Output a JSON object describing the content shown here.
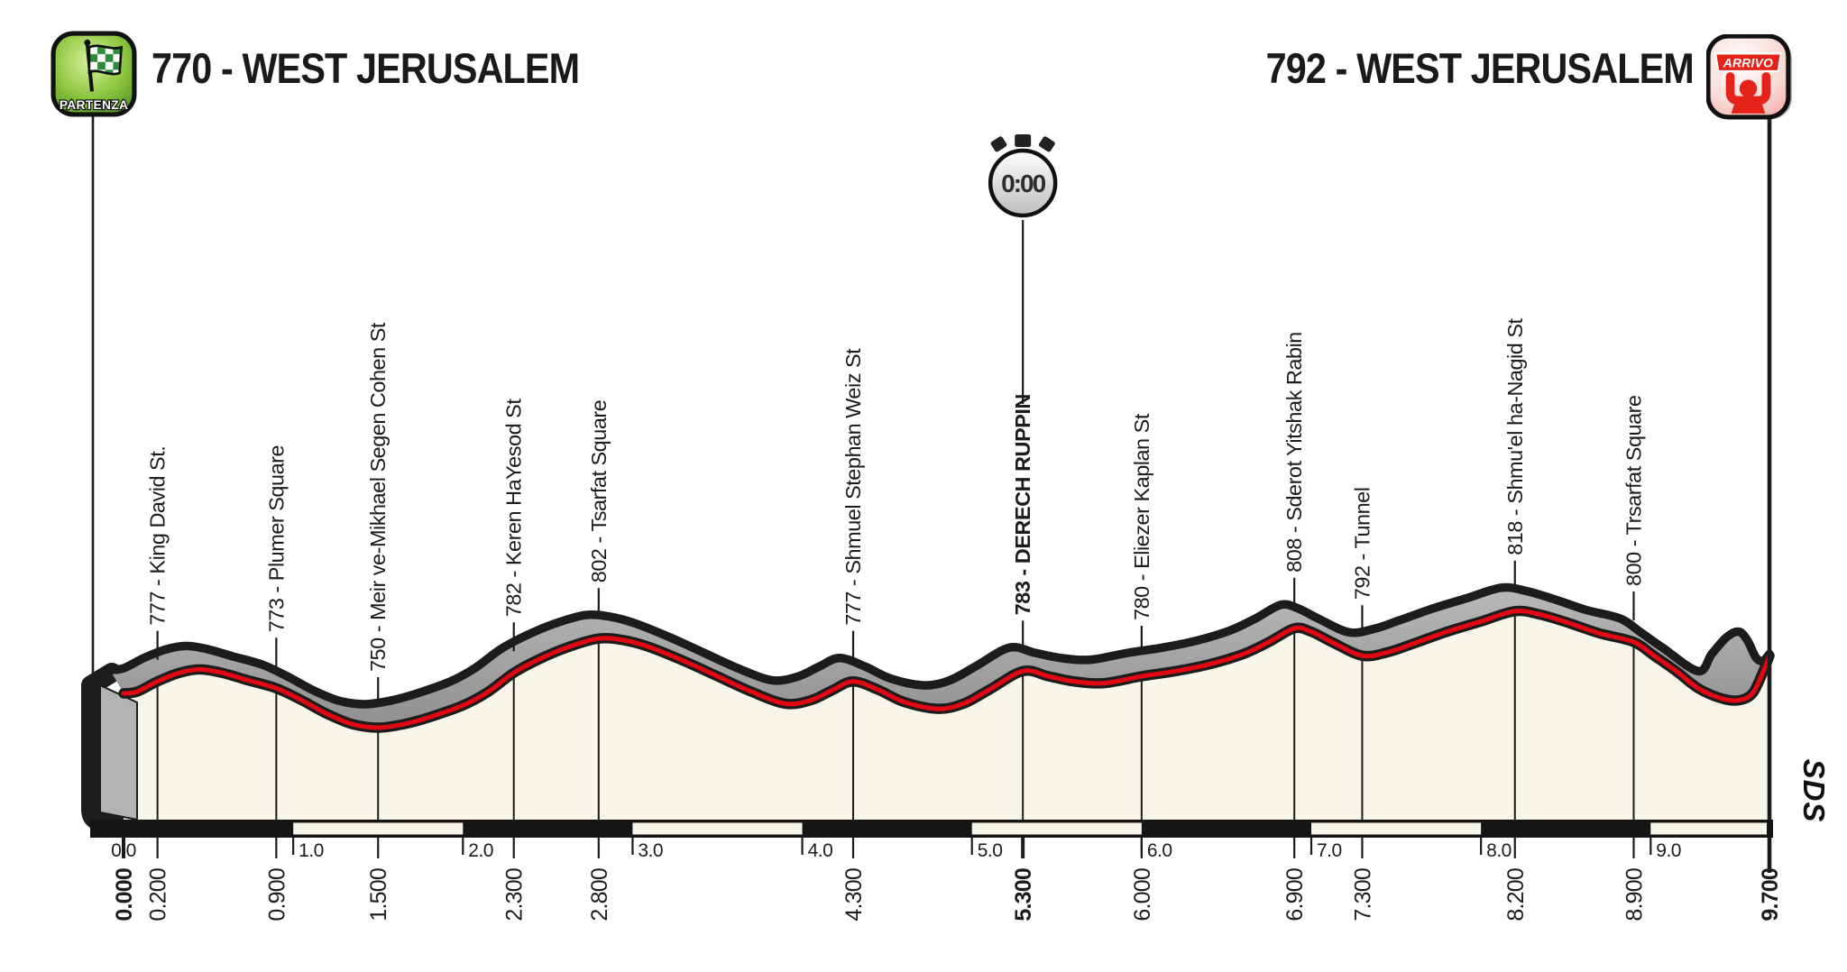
{
  "header": {
    "start_label": "770 - WEST JERUSALEM",
    "finish_label": "792 - WEST JERUSALEM",
    "partenza_badge": "PARTENZA",
    "arrivo_badge": "ARRIVO"
  },
  "stopwatch": {
    "time": "0:00"
  },
  "branding": {
    "logo": "SDS"
  },
  "colors": {
    "red_line": "#e30613",
    "cream_fill": "#f8f6e8",
    "gray_band": "#9d9d9d",
    "outline_black": "#1c1c1c",
    "start_green": "#76b82a",
    "finish_red": "#e5231b"
  },
  "chart_data": {
    "type": "area",
    "title": "Stage elevation profile - West Jerusalem individual time trial",
    "x_unit": "km",
    "y_unit": "m",
    "x_range": [
      0,
      9.7
    ],
    "elevation_range_m": [
      750,
      818
    ],
    "km_ticks": [
      "0.0",
      "1.0",
      "2.0",
      "3.0",
      "4.0",
      "5.0",
      "6.0",
      "7.0",
      "8.0",
      "9.0"
    ],
    "waypoints": [
      {
        "km": 0.0,
        "km_label": "0.000",
        "elevation": 770,
        "name": "",
        "bold": true,
        "axis_only": true
      },
      {
        "km": 0.2,
        "km_label": "0.200",
        "elevation": 777,
        "name": "King David St.",
        "bold": false,
        "axis_only": false
      },
      {
        "km": 0.9,
        "km_label": "0.900",
        "elevation": 773,
        "name": "Plumer Square",
        "bold": false,
        "axis_only": false
      },
      {
        "km": 1.5,
        "km_label": "1.500",
        "elevation": 750,
        "name": "Meir ve-Mikhael Segen Cohen St",
        "bold": false,
        "axis_only": false
      },
      {
        "km": 2.3,
        "km_label": "2.300",
        "elevation": 782,
        "name": "Keren HaYesod St",
        "bold": false,
        "axis_only": false
      },
      {
        "km": 2.8,
        "km_label": "2.800",
        "elevation": 802,
        "name": "Tsarfat Square",
        "bold": false,
        "axis_only": false
      },
      {
        "km": 4.3,
        "km_label": "4.300",
        "elevation": 777,
        "name": "Shmuel Stephan Weiz St",
        "bold": false,
        "axis_only": false
      },
      {
        "km": 5.3,
        "km_label": "5.300",
        "elevation": 783,
        "name": "DERECH RUPPIN",
        "bold": true,
        "axis_only": false
      },
      {
        "km": 6.0,
        "km_label": "6.000",
        "elevation": 780,
        "name": "Eliezer Kaplan St",
        "bold": false,
        "axis_only": false
      },
      {
        "km": 6.9,
        "km_label": "6.900",
        "elevation": 808,
        "name": "Sderot Yitshak Rabin",
        "bold": false,
        "axis_only": false
      },
      {
        "km": 7.3,
        "km_label": "7.300",
        "elevation": 792,
        "name": "Tunnel",
        "bold": false,
        "axis_only": false
      },
      {
        "km": 8.2,
        "km_label": "8.200",
        "elevation": 818,
        "name": "Shmu'el ha-Nagid St",
        "bold": false,
        "axis_only": false
      },
      {
        "km": 8.9,
        "km_label": "8.900",
        "elevation": 800,
        "name": "Trsarfat Square",
        "bold": false,
        "axis_only": false
      },
      {
        "km": 9.7,
        "km_label": "9.700",
        "elevation": 792,
        "name": "",
        "bold": true,
        "axis_only": true
      }
    ],
    "profile_m": [
      [
        0.0,
        770
      ],
      [
        0.08,
        771
      ],
      [
        0.2,
        777
      ],
      [
        0.33,
        782
      ],
      [
        0.45,
        784
      ],
      [
        0.58,
        782
      ],
      [
        0.72,
        778
      ],
      [
        0.9,
        773
      ],
      [
        1.05,
        766
      ],
      [
        1.2,
        758
      ],
      [
        1.35,
        752
      ],
      [
        1.5,
        750
      ],
      [
        1.65,
        752
      ],
      [
        1.8,
        756
      ],
      [
        2.0,
        763
      ],
      [
        2.15,
        771
      ],
      [
        2.3,
        782
      ],
      [
        2.45,
        790
      ],
      [
        2.62,
        797
      ],
      [
        2.8,
        802
      ],
      [
        2.95,
        801
      ],
      [
        3.1,
        797
      ],
      [
        3.3,
        789
      ],
      [
        3.5,
        780
      ],
      [
        3.7,
        771
      ],
      [
        3.9,
        764
      ],
      [
        4.05,
        766
      ],
      [
        4.18,
        772
      ],
      [
        4.3,
        777
      ],
      [
        4.45,
        772
      ],
      [
        4.6,
        765
      ],
      [
        4.8,
        761
      ],
      [
        4.95,
        764
      ],
      [
        5.1,
        772
      ],
      [
        5.3,
        783
      ],
      [
        5.45,
        780
      ],
      [
        5.6,
        777
      ],
      [
        5.78,
        776
      ],
      [
        6.0,
        780
      ],
      [
        6.2,
        783
      ],
      [
        6.4,
        787
      ],
      [
        6.6,
        793
      ],
      [
        6.75,
        800
      ],
      [
        6.9,
        808
      ],
      [
        7.0,
        806
      ],
      [
        7.12,
        800
      ],
      [
        7.3,
        792
      ],
      [
        7.45,
        794
      ],
      [
        7.6,
        799
      ],
      [
        7.8,
        806
      ],
      [
        8.0,
        812
      ],
      [
        8.2,
        818
      ],
      [
        8.35,
        816
      ],
      [
        8.52,
        811
      ],
      [
        8.7,
        805
      ],
      [
        8.9,
        800
      ],
      [
        9.02,
        792
      ],
      [
        9.15,
        783
      ],
      [
        9.28,
        773
      ],
      [
        9.42,
        767
      ],
      [
        9.52,
        766
      ],
      [
        9.6,
        770
      ],
      [
        9.66,
        782
      ],
      [
        9.7,
        792
      ]
    ],
    "ribbon_top_tail_m": [
      [
        9.28,
        783
      ],
      [
        9.36,
        793
      ],
      [
        9.45,
        803
      ],
      [
        9.52,
        806
      ],
      [
        9.57,
        801
      ],
      [
        9.62,
        791
      ],
      [
        9.66,
        789
      ],
      [
        9.7,
        793
      ]
    ]
  }
}
